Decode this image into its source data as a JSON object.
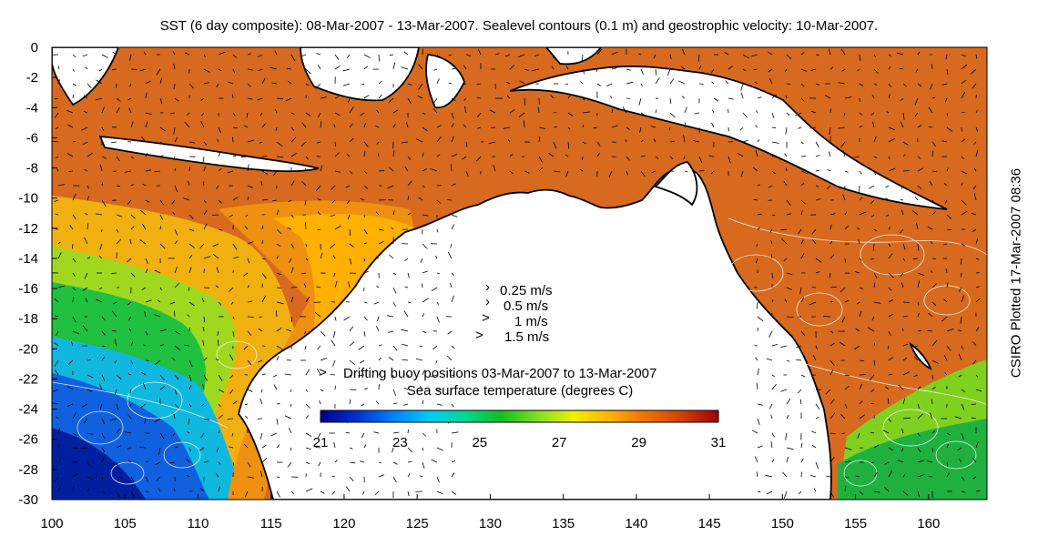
{
  "title": "SST (6 day composite): 08-Mar-2007 - 13-Mar-2007. Sealevel contours (0.1 m) and geostrophic velocity: 10-Mar-2007.",
  "credit": "CSIRO Plotted 17-Mar-2007 08:36",
  "axes": {
    "x_ticks": [
      "100",
      "105",
      "110",
      "115",
      "120",
      "125",
      "130",
      "135",
      "140",
      "145",
      "150",
      "155",
      "160"
    ],
    "y_ticks": [
      "0",
      "-2",
      "-4",
      "-6",
      "-8",
      "-10",
      "-12",
      "-14",
      "-16",
      "-18",
      "-20",
      "-22",
      "-24",
      "-26",
      "-28",
      "-30"
    ],
    "lon_range": [
      100,
      164
    ],
    "lat_range": [
      -30,
      0
    ]
  },
  "velocity_legend": [
    "0.25 m/s",
    "0.5 m/s",
    "1 m/s",
    "1.5 m/s"
  ],
  "buoy_legend": {
    "marker": ">",
    "label": "Drifting buoy positions 03-Mar-2007 to 13-Mar-2007",
    "color": "#d040d0"
  },
  "colorbar": {
    "label": "Sea surface temperature (degrees C)",
    "ticks": [
      "21",
      "23",
      "25",
      "27",
      "29",
      "31"
    ],
    "range": [
      21,
      31
    ],
    "colors": [
      "#00008b",
      "#0030d0",
      "#0080ff",
      "#00c8ff",
      "#00d890",
      "#10c020",
      "#80e020",
      "#f0f000",
      "#ffb000",
      "#f07000",
      "#d04000",
      "#a00000"
    ]
  },
  "colors": {
    "land": "#ffffff",
    "coast": "#000000",
    "contour": "#ffffff",
    "arrow": "#000000"
  }
}
